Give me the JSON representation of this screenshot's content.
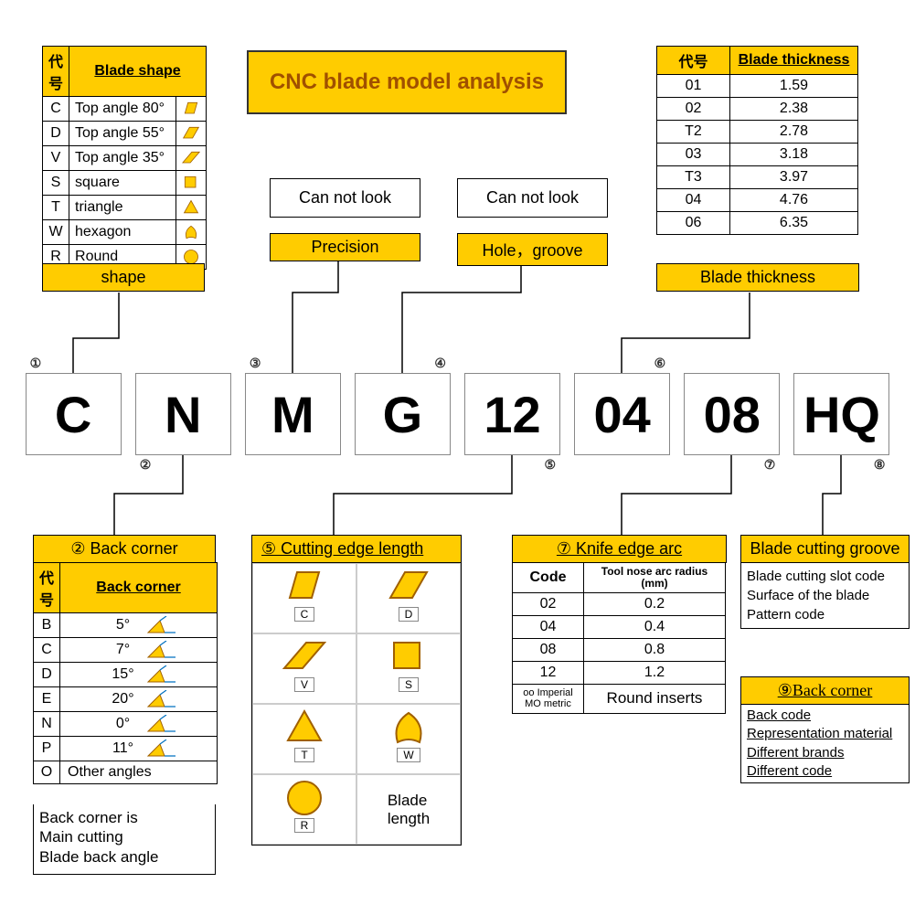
{
  "colors": {
    "accent": "#ffcc00",
    "border": "#000000",
    "shape_fill": "#ffcc00",
    "shape_stroke": "#a06000"
  },
  "title": "CNC blade model analysis",
  "model_code": [
    "C",
    "N",
    "M",
    "G",
    "12",
    "04",
    "08",
    "HQ"
  ],
  "circled_numbers": [
    "①",
    "②",
    "③",
    "④",
    "⑤",
    "⑥",
    "⑦",
    "⑧"
  ],
  "blade_shape": {
    "header_code": "代号",
    "header_label": "Blade shape",
    "rows": [
      {
        "code": "C",
        "label": "Top angle 80°",
        "icon": "rhombus80"
      },
      {
        "code": "D",
        "label": "Top angle 55°",
        "icon": "rhombus55"
      },
      {
        "code": "V",
        "label": "Top angle 35°",
        "icon": "rhombus35"
      },
      {
        "code": "S",
        "label": "square",
        "icon": "square"
      },
      {
        "code": "T",
        "label": "triangle",
        "icon": "triangle"
      },
      {
        "code": "W",
        "label": "hexagon",
        "icon": "trigon"
      },
      {
        "code": "R",
        "label": "Round",
        "icon": "circle"
      }
    ],
    "footer": "shape"
  },
  "precision": {
    "box": "Can not look",
    "label": "Precision"
  },
  "hole_groove": {
    "box": "Can not look",
    "label": "Hole，groove"
  },
  "blade_thickness": {
    "header_code": "代号",
    "header_label": "Blade thickness",
    "rows": [
      {
        "c": "01",
        "v": "1.59"
      },
      {
        "c": "02",
        "v": "2.38"
      },
      {
        "c": "T2",
        "v": "2.78"
      },
      {
        "c": "03",
        "v": "3.18"
      },
      {
        "c": "T3",
        "v": "3.97"
      },
      {
        "c": "04",
        "v": "4.76"
      },
      {
        "c": "06",
        "v": "6.35"
      }
    ],
    "footer": "Blade thickness"
  },
  "back_corner": {
    "title": "② Back corner",
    "header_code": "代号",
    "header_label": "Back corner",
    "rows": [
      {
        "c": "B",
        "v": "5°"
      },
      {
        "c": "C",
        "v": "7°"
      },
      {
        "c": "D",
        "v": "15°"
      },
      {
        "c": "E",
        "v": "20°"
      },
      {
        "c": "N",
        "v": "0°"
      },
      {
        "c": "P",
        "v": "11°"
      }
    ],
    "other": "Other angles",
    "other_code": "O",
    "note": "Back corner is\nMain cutting\nBlade back angle"
  },
  "cutting_edge": {
    "title": "⑤ Cutting edge length",
    "shapes": [
      "C",
      "D",
      "V",
      "S",
      "T",
      "W",
      "R"
    ],
    "blade_length_label": "Blade\nlength"
  },
  "knife_edge_arc": {
    "title": "⑦ Knife edge arc",
    "header_code": "Code",
    "header_label": "Tool nose arc radius\n(mm)",
    "rows": [
      {
        "c": "02",
        "v": "0.2"
      },
      {
        "c": "04",
        "v": "0.4"
      },
      {
        "c": "08",
        "v": "0.8"
      },
      {
        "c": "12",
        "v": "1.2"
      }
    ],
    "round_code": "oo Imperial\nMO metric",
    "round_label": "Round inserts"
  },
  "blade_cutting_groove": {
    "title": "Blade cutting groove",
    "lines": [
      "Blade cutting slot code",
      "Surface of the blade",
      "Pattern code"
    ]
  },
  "back_corner9": {
    "title": "⑨Back corner",
    "lines": [
      "Back code",
      "Representation material",
      "Different brands",
      "Different code"
    ]
  }
}
